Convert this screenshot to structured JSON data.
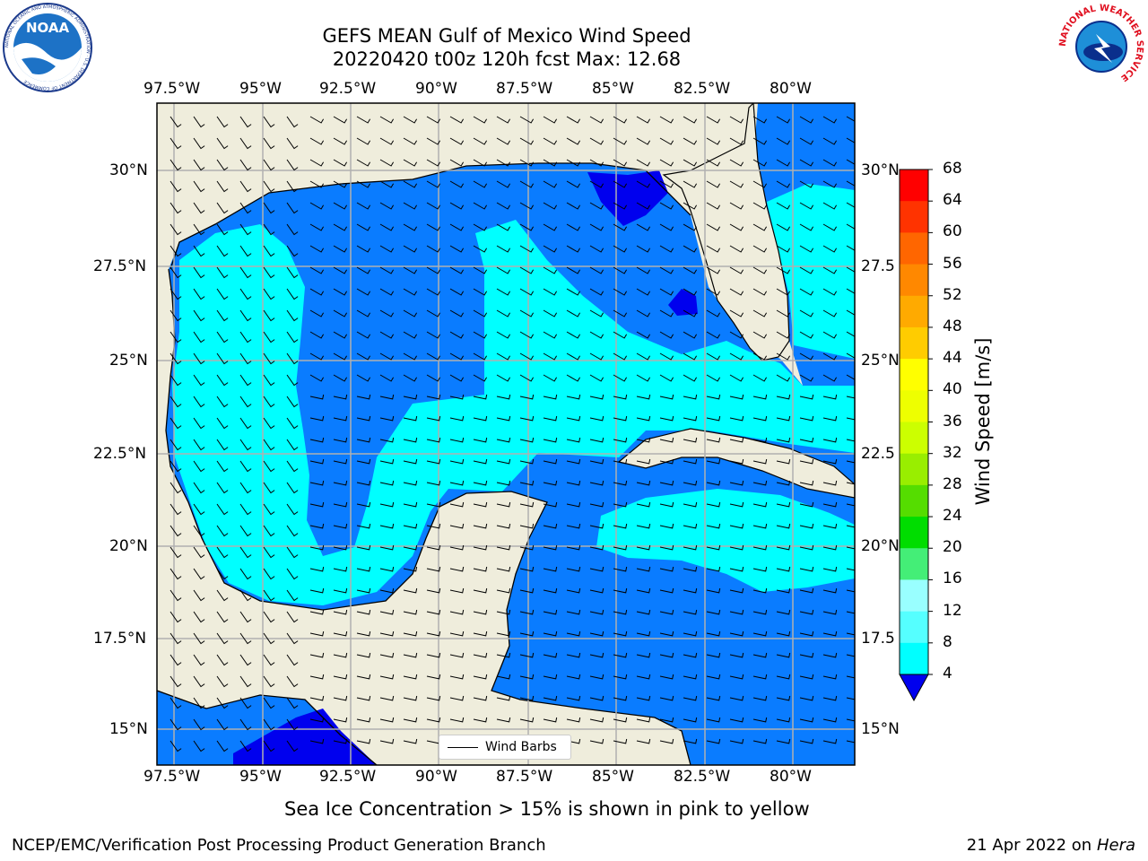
{
  "header": {
    "line1": "GEFS MEAN Gulf of Mexico Wind Speed",
    "line2": "20220420 t00z 120h fcst   Max: 12.68"
  },
  "logos": {
    "left_name": "NOAA",
    "left_ring_text": "NATIONAL OCEANIC AND ATMOSPHERIC ADMINISTRATION · U.S. DEPARTMENT OF COMMERCE",
    "right_ring_text": "NATIONAL WEATHER SERVICE"
  },
  "axes": {
    "lon_labels": [
      "97.5°W",
      "95°W",
      "92.5°W",
      "90°W",
      "87.5°W",
      "85°W",
      "82.5°W",
      "80°W"
    ],
    "lat_labels": [
      "30°N",
      "27.5°N",
      "25°N",
      "22.5°N",
      "20°N",
      "17.5°N",
      "15°N"
    ],
    "right_lat_labels": [
      "30°N",
      "27.5",
      "25°N",
      "22.5",
      "20°N",
      "17.5",
      "15°N"
    ]
  },
  "legend": {
    "label": "Wind Barbs"
  },
  "colorbar": {
    "title": "Wind Speed [m/s]",
    "levels": [
      "68",
      "64",
      "60",
      "56",
      "52",
      "48",
      "44",
      "40",
      "36",
      "32",
      "28",
      "24",
      "20",
      "16",
      "12",
      "8",
      "4"
    ],
    "colors": [
      "#ff0000",
      "#ff3300",
      "#ff6600",
      "#ff8800",
      "#ffaa00",
      "#ffcc00",
      "#ffff00",
      "#eeff00",
      "#ccff00",
      "#99ee00",
      "#55dd00",
      "#00dd00",
      "#44ee77",
      "#99ffff",
      "#55ffff",
      "#00ffff",
      "#0080ff"
    ],
    "under_color": "#0000ee"
  },
  "map_colors": {
    "land": "#efeddc",
    "ocean_4_8": "#0a7cff",
    "ocean_8_12": "#00ffff",
    "ocean_under_4": "#0000ee"
  },
  "footer": {
    "caption": "Sea Ice Concentration > 15% is shown in pink to yellow",
    "left": "NCEP/EMC/Verification Post Processing Product Generation Branch",
    "right_prefix": "21 Apr 2022 on ",
    "right_host": "Hera"
  }
}
